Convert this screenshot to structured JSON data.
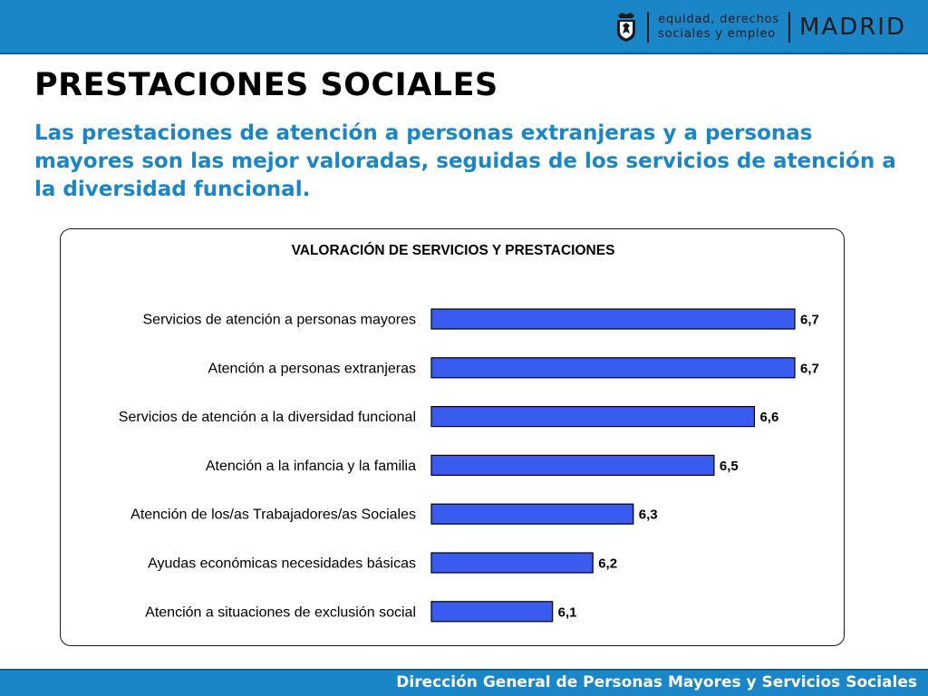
{
  "header": {
    "logo_dept_line1": "equidad, derechos",
    "logo_dept_line2": "sociales y empleo",
    "logo_city": "MADRID",
    "seal_icon": "madrid-coat-of-arms-icon",
    "bar_color": "#1a86c8"
  },
  "page_title": "PRESTACIONES SOCIALES",
  "subtitle": "Las prestaciones de atención a personas extranjeras y a personas mayores son las mejor valoradas, seguidas de los servicios de atención a la diversidad funcional.",
  "footer": {
    "text": "Dirección General de Personas Mayores y Servicios Sociales"
  },
  "chart_data": {
    "type": "bar",
    "orientation": "horizontal",
    "title": "VALORACIÓN DE SERVICIOS Y PRESTACIONES",
    "categories": [
      "Servicios de atención a personas mayores",
      "Atención a personas extranjeras",
      "Servicios de atención a la diversidad funcional",
      "Atención a la infancia y la familia",
      "Atención de los/as Trabajadores/as Sociales",
      "Ayudas económicas necesidades básicas",
      "Atención a situaciones de exclusión social"
    ],
    "values": [
      6.7,
      6.7,
      6.6,
      6.5,
      6.3,
      6.2,
      6.1
    ],
    "data_labels": [
      "6,7",
      "6,7",
      "6,6",
      "6,5",
      "6,3",
      "6,2",
      "6,1"
    ],
    "xlim": [
      5.8,
      6.7
    ],
    "grid": false,
    "legend": "none",
    "bar_color": "#3a5bf0"
  }
}
